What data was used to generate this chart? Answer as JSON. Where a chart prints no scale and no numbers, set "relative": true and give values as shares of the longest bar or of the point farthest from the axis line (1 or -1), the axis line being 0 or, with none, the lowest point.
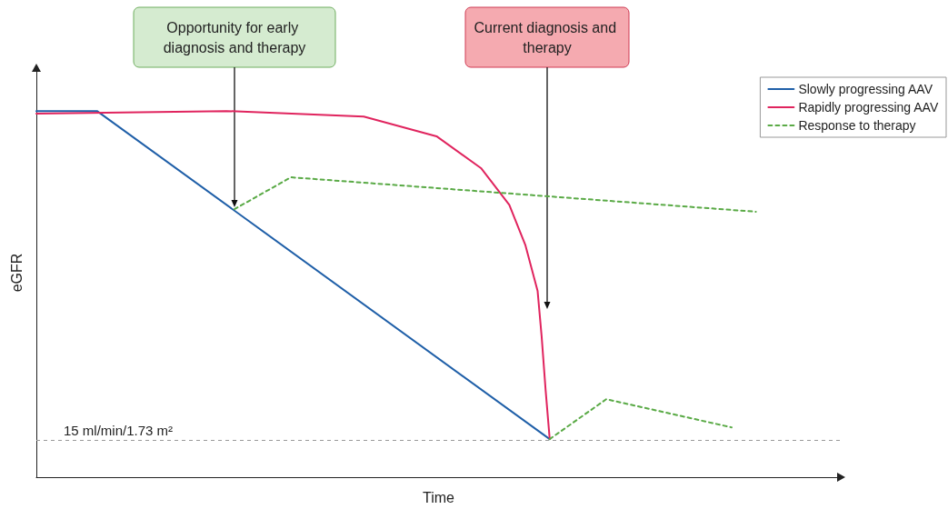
{
  "chart_data": {
    "type": "line",
    "relative": true,
    "xlabel": "Time",
    "ylabel": "eGFR",
    "legend": "top right",
    "marker": "none",
    "categories": [
      null,
      null,
      null,
      null,
      null,
      null,
      null,
      null,
      null,
      null,
      null,
      null,
      null,
      null,
      null,
      null,
      null,
      null,
      null,
      null,
      null,
      null,
      null,
      null,
      null,
      null,
      null,
      null,
      null,
      null,
      null,
      null,
      null,
      null,
      null,
      null,
      null,
      null,
      null,
      null,
      null,
      null,
      null,
      null,
      null,
      null,
      null,
      null,
      null,
      null,
      null,
      null,
      null,
      null,
      null,
      null,
      null,
      null,
      null,
      null,
      null,
      null,
      null,
      null,
      null,
      null,
      null,
      null,
      null,
      null,
      null,
      null,
      null,
      null,
      null,
      null,
      null,
      null,
      null,
      null,
      null,
      null,
      null,
      null,
      null,
      null,
      null,
      null,
      null,
      null,
      null,
      null,
      null,
      null,
      null,
      null,
      null,
      null,
      null,
      null,
      null,
      null,
      null,
      null,
      null,
      null,
      null,
      null,
      null,
      null,
      null,
      null,
      null,
      null,
      null,
      null,
      null,
      null,
      null,
      null,
      null,
      null,
      null,
      null,
      null,
      null,
      null,
      null,
      null,
      null,
      null,
      null,
      null,
      null,
      null,
      null,
      null,
      null,
      null,
      null,
      null,
      null,
      null,
      null,
      null,
      null,
      null,
      null,
      null,
      null,
      null,
      null,
      null,
      null,
      null,
      null,
      null,
      null,
      null,
      null,
      null,
      null,
      null,
      null,
      null,
      null,
      null,
      null,
      null,
      null,
      null,
      null,
      null,
      null,
      null,
      null,
      null,
      null,
      null,
      null,
      null,
      null,
      null,
      null,
      null,
      null,
      null,
      null,
      null,
      null,
      null,
      null,
      null,
      null,
      null,
      null,
      null,
      null,
      null,
      null
    ],
    "series": [
      {
        "name": "Slowly progressing AAV",
        "color": "#1f5fa8",
        "values": [
          1,
          null,
          null,
          null,
          null,
          null,
          null,
          null,
          null,
          null,
          null,
          null,
          null,
          null,
          null,
          1,
          null,
          null,
          null,
          null,
          null,
          null,
          null,
          null,
          null,
          null,
          null,
          null,
          null,
          null,
          null,
          null,
          null,
          null,
          null,
          null,
          null,
          null,
          null,
          null,
          null,
          null,
          null,
          null,
          null,
          null,
          null,
          null,
          null,
          null,
          null,
          null,
          null,
          null,
          null,
          null,
          null,
          null,
          null,
          null,
          null,
          null,
          null,
          null,
          null,
          null,
          null,
          null,
          null,
          null,
          null,
          null,
          null,
          null,
          null,
          null,
          null,
          null,
          null,
          null,
          null,
          null,
          null,
          null,
          null,
          null,
          null,
          null,
          null,
          null,
          null,
          null,
          null,
          null,
          null,
          null,
          null,
          null,
          null,
          null,
          null,
          null,
          null,
          null,
          null,
          null,
          null,
          null,
          null,
          null,
          null,
          null,
          null,
          null,
          null,
          null,
          null,
          null,
          null,
          null,
          null,
          null,
          null,
          null,
          null,
          null,
          null,
          0.104,
          null,
          null,
          null,
          null,
          null,
          null,
          null,
          null,
          null,
          null,
          null,
          null,
          null,
          null,
          null,
          null,
          null,
          null,
          null,
          null,
          null,
          null,
          null,
          null,
          null,
          null,
          null,
          null,
          null,
          null,
          null,
          null,
          null,
          null,
          null,
          null,
          null,
          null,
          null,
          null,
          null,
          null,
          null,
          null,
          null,
          null,
          null,
          null,
          null,
          null,
          null,
          null,
          null,
          null,
          null,
          null,
          null,
          null,
          null,
          null,
          null,
          null,
          null,
          null,
          null,
          null,
          null,
          null,
          null,
          null,
          null,
          null
        ]
      },
      {
        "name": "Rapidly progressing AAV",
        "color": "#e0245e",
        "values": [
          0.993,
          null,
          null,
          null,
          null,
          null,
          null,
          null,
          null,
          null,
          null,
          null,
          null,
          null,
          null,
          null,
          null,
          null,
          null,
          null,
          null,
          null,
          null,
          null,
          null,
          null,
          null,
          null,
          null,
          null,
          null,
          null,
          null,
          null,
          null,
          null,
          null,
          null,
          null,
          null,
          null,
          null,
          null,
          null,
          null,
          null,
          null,
          1,
          null,
          null,
          null,
          null,
          null,
          null,
          null,
          null,
          null,
          null,
          null,
          null,
          null,
          null,
          null,
          null,
          null,
          null,
          null,
          null,
          null,
          null,
          null,
          null,
          null,
          null,
          null,
          null,
          null,
          null,
          null,
          null,
          null,
          0.985,
          null,
          null,
          null,
          null,
          null,
          null,
          null,
          null,
          null,
          null,
          null,
          null,
          null,
          null,
          null,
          null,
          null,
          0.931,
          null,
          null,
          null,
          null,
          null,
          null,
          null,
          null,
          null,
          null,
          0.844,
          null,
          null,
          null,
          null,
          null,
          null,
          0.744,
          null,
          null,
          null,
          0.633,
          null,
          null,
          0.509,
          0.385,
          0.236,
          0.104,
          null,
          null,
          null,
          null,
          null,
          null,
          null,
          null,
          null,
          null,
          null,
          null,
          null,
          null,
          null,
          null,
          null,
          null,
          null,
          null,
          null,
          null,
          null,
          null,
          null,
          null,
          null,
          null,
          null,
          null,
          null,
          null,
          null,
          null,
          null,
          null,
          null,
          null,
          null,
          null,
          null,
          null,
          null,
          null,
          null,
          null,
          null,
          null,
          null,
          null,
          null,
          null,
          null,
          null,
          null,
          null,
          null,
          null,
          null,
          null,
          null,
          null,
          null,
          null,
          null,
          null,
          null,
          null,
          null,
          null,
          null,
          null
        ]
      },
      {
        "name": "Response to therapy",
        "color": "#5aaa46",
        "line_style": "dashed",
        "values": [
          null,
          null,
          null,
          null,
          null,
          null,
          null,
          null,
          null,
          null,
          null,
          null,
          null,
          null,
          null,
          null,
          null,
          null,
          null,
          null,
          null,
          null,
          null,
          null,
          null,
          null,
          null,
          null,
          null,
          null,
          null,
          null,
          null,
          null,
          null,
          null,
          null,
          null,
          null,
          null,
          null,
          null,
          null,
          null,
          null,
          null,
          null,
          null,
          null,
          0.732,
          null,
          null,
          null,
          null,
          null,
          null,
          null,
          null,
          null,
          null,
          null,
          null,
          null,
          0.819,
          null,
          null,
          null,
          null,
          null,
          null,
          null,
          null,
          null,
          null,
          null,
          null,
          null,
          null,
          null,
          null,
          null,
          null,
          null,
          null,
          null,
          null,
          null,
          null,
          null,
          null,
          null,
          null,
          null,
          null,
          null,
          null,
          null,
          null,
          null,
          null,
          null,
          null,
          null,
          null,
          null,
          null,
          null,
          null,
          null,
          null,
          null,
          null,
          null,
          null,
          null,
          null,
          null,
          null,
          null,
          null,
          null,
          null,
          null,
          null,
          null,
          null,
          null,
          null,
          null,
          null,
          null,
          null,
          null,
          null,
          null,
          null,
          null,
          null,
          null,
          null,
          null,
          null,
          null,
          null,
          null,
          null,
          null,
          null,
          null,
          null,
          null,
          null,
          null,
          null,
          null,
          null,
          null,
          null,
          null,
          null,
          null,
          null,
          null,
          null,
          null,
          null,
          null,
          null,
          null,
          null,
          null,
          null,
          null,
          null,
          null,
          null,
          null,
          null,
          0.725,
          null,
          null,
          null,
          null,
          null,
          null,
          null,
          null,
          null,
          null,
          null,
          null,
          null,
          null,
          null,
          null,
          null,
          null,
          null,
          null,
          null
        ]
      },
      {
        "color": "#5aaa46",
        "line_style": "dashed",
        "values": [
          null,
          null,
          null,
          null,
          null,
          null,
          null,
          null,
          null,
          null,
          null,
          null,
          null,
          null,
          null,
          null,
          null,
          null,
          null,
          null,
          null,
          null,
          null,
          null,
          null,
          null,
          null,
          null,
          null,
          null,
          null,
          null,
          null,
          null,
          null,
          null,
          null,
          null,
          null,
          null,
          null,
          null,
          null,
          null,
          null,
          null,
          null,
          null,
          null,
          null,
          null,
          null,
          null,
          null,
          null,
          null,
          null,
          null,
          null,
          null,
          null,
          null,
          null,
          null,
          null,
          null,
          null,
          null,
          null,
          null,
          null,
          null,
          null,
          null,
          null,
          null,
          null,
          null,
          null,
          null,
          null,
          null,
          null,
          null,
          null,
          null,
          null,
          null,
          null,
          null,
          null,
          null,
          null,
          null,
          null,
          null,
          null,
          null,
          null,
          null,
          null,
          null,
          null,
          null,
          null,
          null,
          null,
          null,
          null,
          null,
          null,
          null,
          null,
          null,
          null,
          null,
          null,
          null,
          null,
          null,
          null,
          null,
          null,
          null,
          null,
          null,
          null,
          0.104,
          null,
          null,
          null,
          null,
          null,
          null,
          null,
          null,
          null,
          null,
          null,
          null,
          null,
          0.213,
          null,
          null,
          null,
          null,
          null,
          null,
          null,
          null,
          null,
          null,
          null,
          null,
          null,
          null,
          null,
          null,
          null,
          null,
          null,
          null,
          null,
          null,
          null,
          null,
          null,
          null,
          null,
          null,
          null,
          null,
          0.136,
          null,
          null,
          null,
          null,
          null,
          null,
          null,
          null,
          null,
          null,
          null,
          null,
          null,
          null,
          null,
          null,
          null,
          null,
          null,
          null,
          null,
          null,
          null,
          null,
          null,
          null,
          null
        ]
      }
    ],
    "ref_lines": [
      {
        "axis": "y",
        "value": 0.104,
        "label": "15 ml/min/1.73 m²",
        "color": "#999999",
        "line_style": "dashed"
      }
    ],
    "annotations": [
      "Opportunity for early diagnosis and therapy",
      "Current diagnosis and therapy"
    ]
  }
}
